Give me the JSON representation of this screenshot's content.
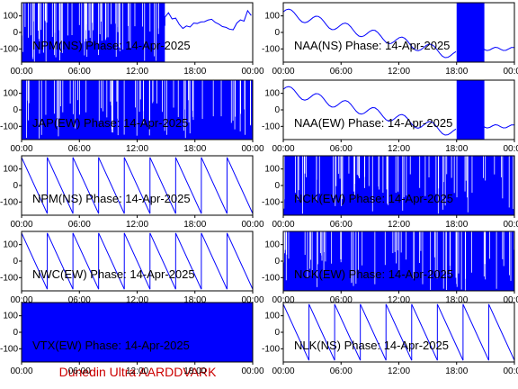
{
  "credit": "Dunedin Ultra AARDDVARK",
  "chart_data": [
    {
      "type": "line",
      "title": "NPM(NS) Phase: 14-Apr-2025",
      "station": "NPM",
      "pol": "NS",
      "pattern": "dense",
      "partial": [
        0.0,
        0.62
      ],
      "ylim": [
        -180,
        180
      ],
      "yticks": [
        100,
        0,
        -100
      ],
      "xticks": [
        "00:00",
        "06:00",
        "12:00",
        "18:00",
        "00:00"
      ]
    },
    {
      "type": "line",
      "title": "NAA(NS) Phase: 14-Apr-2025",
      "station": "NAA",
      "pol": "NS",
      "pattern": "mixed",
      "ylim": [
        -180,
        180
      ],
      "yticks": [
        100,
        0,
        -100
      ],
      "xticks": [
        "00:00",
        "06:00",
        "12:00",
        "18:00",
        "00:00"
      ]
    },
    {
      "type": "line",
      "title": "JAP(EW) Phase: 14-Apr-2025",
      "station": "JAP",
      "pol": "EW",
      "pattern": "dense",
      "ylim": [
        -180,
        180
      ],
      "yticks": [
        100,
        0,
        -100
      ],
      "xticks": [
        "00:00",
        "06:00",
        "12:00",
        "18:00",
        "00:00"
      ]
    },
    {
      "type": "line",
      "title": "NAA(EW) Phase: 14-Apr-2025",
      "station": "NAA",
      "pol": "EW",
      "pattern": "mixed",
      "ylim": [
        -180,
        180
      ],
      "yticks": [
        100,
        0,
        -100
      ],
      "xticks": [
        "00:00",
        "06:00",
        "12:00",
        "18:00",
        "00:00"
      ]
    },
    {
      "type": "line",
      "title": "NPM(NS) Phase: 14-Apr-2025",
      "station": "NPM",
      "pol": "NS",
      "pattern": "sawtooth",
      "ylim": [
        -180,
        180
      ],
      "yticks": [
        100,
        0,
        -100
      ],
      "xticks": [
        "00:00",
        "06:00",
        "12:00",
        "18:00",
        "00:00"
      ]
    },
    {
      "type": "line",
      "title": "NCK(EW) Phase: 14-Apr-2025",
      "station": "NCK",
      "pol": "EW",
      "pattern": "dense",
      "ylim": [
        -180,
        180
      ],
      "yticks": [
        100,
        0,
        -100
      ],
      "xticks": [
        "00:00",
        "06:00",
        "12:00",
        "18:00",
        "00:00"
      ]
    },
    {
      "type": "line",
      "title": "NWC(EW) Phase: 14-Apr-2025",
      "station": "NWC",
      "pol": "EW",
      "pattern": "sawtooth",
      "ylim": [
        -180,
        180
      ],
      "yticks": [
        100,
        0,
        -100
      ],
      "xticks": [
        "00:00",
        "06:00",
        "12:00",
        "18:00",
        "00:00"
      ]
    },
    {
      "type": "line",
      "title": "NCK(EW) Phase: 14-Apr-2025",
      "station": "NCK",
      "pol": "EW",
      "pattern": "dense",
      "ylim": [
        -180,
        180
      ],
      "yticks": [
        100,
        0,
        -100
      ],
      "xticks": [
        "00:00",
        "06:00",
        "12:00",
        "18:00",
        "00:00"
      ]
    },
    {
      "type": "line",
      "title": "VTX(EW) Phase: 14-Apr-2025",
      "station": "VTX",
      "pol": "EW",
      "pattern": "solid",
      "ylim": [
        -180,
        180
      ],
      "yticks": [
        100,
        0,
        -100
      ],
      "xticks": [
        "00:00",
        "06:00",
        "12:00",
        "18:00",
        "00:00"
      ]
    },
    {
      "type": "line",
      "title": "NLK(NS) Phase: 14-Apr-2025",
      "station": "NLK",
      "pol": "NS",
      "pattern": "sawtooth",
      "ylim": [
        -180,
        180
      ],
      "yticks": [
        100,
        0,
        -100
      ],
      "xticks": [
        "00:00",
        "06:00",
        "12:00",
        "18:00",
        "00:00"
      ]
    }
  ]
}
